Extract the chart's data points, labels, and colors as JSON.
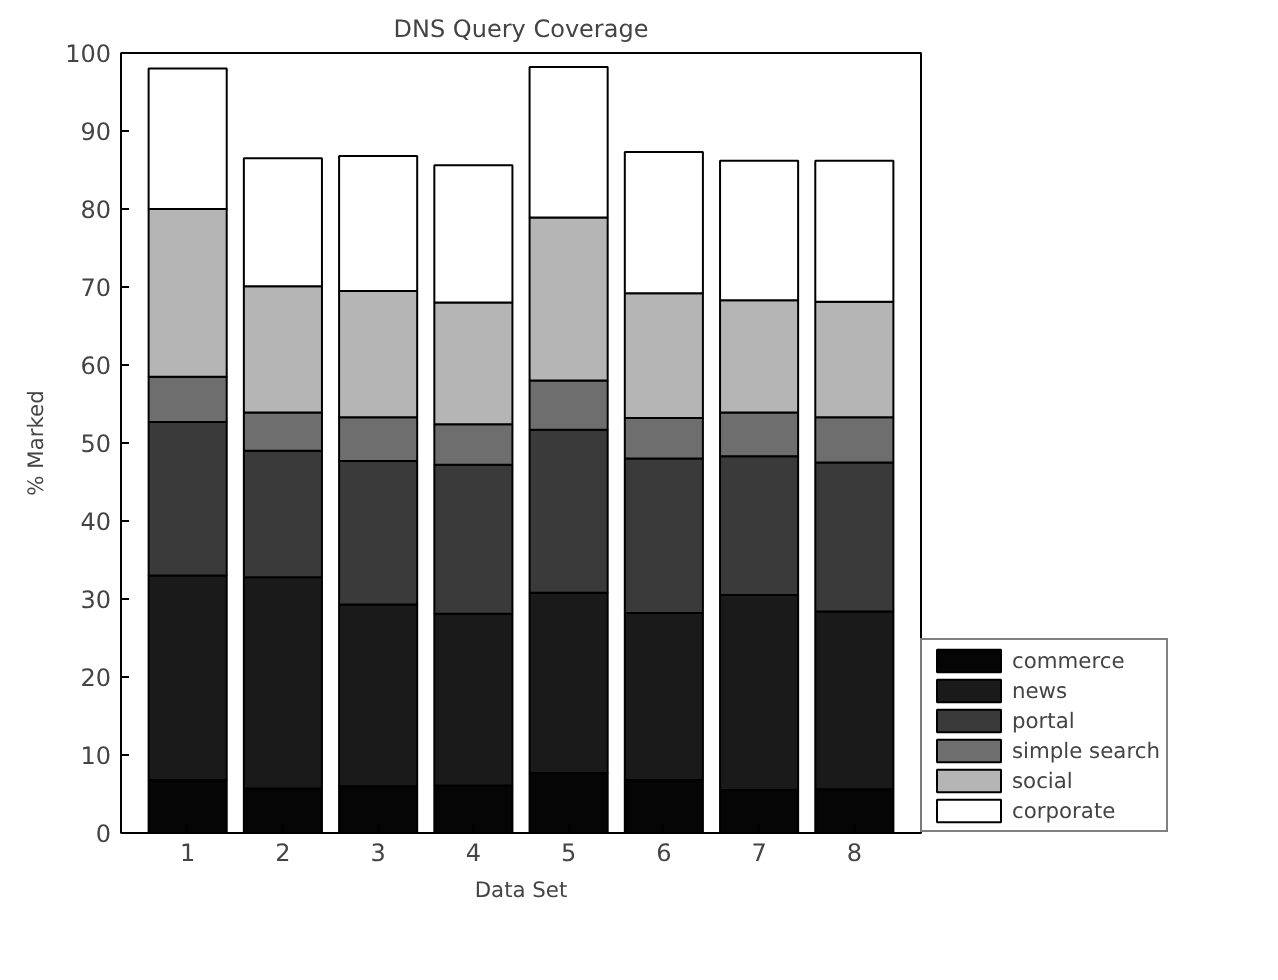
{
  "chart_data": {
    "type": "bar",
    "stacked": true,
    "title": "DNS Query Coverage",
    "xlabel": "Data Set",
    "ylabel": "% Marked",
    "categories": [
      "1",
      "2",
      "3",
      "4",
      "5",
      "6",
      "7",
      "8"
    ],
    "ylim": [
      0,
      100
    ],
    "yticks": [
      0,
      10,
      20,
      30,
      40,
      50,
      60,
      70,
      80,
      90,
      100
    ],
    "grid": false,
    "legend": "bottom right",
    "series": [
      {
        "name": "commerce",
        "color": "#050505",
        "values": [
          6.8,
          5.7,
          6,
          6.1,
          7.7,
          6.8,
          5.5,
          5.6
        ]
      },
      {
        "name": "news",
        "color": "#1a1a1a",
        "values": [
          26.2,
          27.1,
          23.3,
          22,
          23.1,
          21.4,
          25,
          22.8
        ]
      },
      {
        "name": "portal",
        "color": "#3a3a3a",
        "values": [
          19.7,
          16.2,
          18.4,
          19.1,
          20.9,
          19.8,
          17.8,
          19.1
        ]
      },
      {
        "name": "simple search",
        "color": "#6e6e6e",
        "values": [
          5.8,
          4.9,
          5.6,
          5.2,
          6.3,
          5.2,
          5.6,
          5.8
        ]
      },
      {
        "name": "social",
        "color": "#b5b5b5",
        "values": [
          21.5,
          16.2,
          16.2,
          15.6,
          20.9,
          16,
          14.4,
          14.8
        ]
      },
      {
        "name": "corporate",
        "color": "#ffffff",
        "values": [
          18,
          16.4,
          17.3,
          17.6,
          19.3,
          18.1,
          17.9,
          18.1
        ]
      }
    ]
  }
}
